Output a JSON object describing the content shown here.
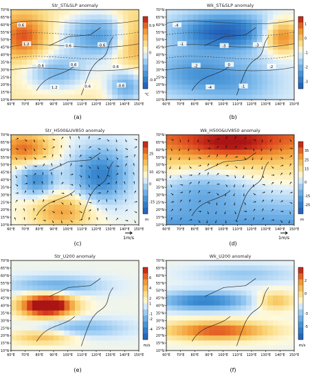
{
  "figure": {
    "captions": [
      "(a)",
      "(b)",
      "(c)",
      "(d)",
      "(e)",
      "(f)"
    ]
  },
  "chart_data": [
    {
      "type": "heatmap",
      "title": "Str_ST&SLP  anomaly",
      "x_ticks": [
        "60°E",
        "70°E",
        "80°E",
        "90°E",
        "100°E",
        "110°E",
        "120°E",
        "130°E",
        "140°E",
        "150°E"
      ],
      "y_ticks": [
        "10°N",
        "15°N",
        "20°N",
        "25°N",
        "30°N",
        "35°N",
        "40°N",
        "45°N",
        "50°N",
        "55°N",
        "60°N",
        "65°N",
        "70°N"
      ],
      "colorbar": {
        "ticks": [
          "-0.9",
          "0",
          "0.9"
        ],
        "unit": "°C",
        "min": -1.2,
        "max": 1.2
      },
      "contour_labels": [
        "0.6",
        "0.6",
        "0.6",
        "1.2",
        "-0.6",
        "-0.6",
        "0.6",
        "1.2",
        "0.6",
        "-0.6"
      ]
    },
    {
      "type": "heatmap",
      "title": "Wk_ST&SLP  anomaly",
      "x_ticks": [
        "60°E",
        "70°E",
        "80°E",
        "90°E",
        "100°E",
        "110°E",
        "120°E",
        "130°E",
        "140°E",
        "150°E"
      ],
      "y_ticks": [
        "10°N",
        "15°N",
        "20°N",
        "25°N",
        "30°N",
        "35°N",
        "40°N",
        "45°N",
        "50°N",
        "55°N",
        "60°N",
        "65°N",
        "70°N"
      ],
      "colorbar": {
        "ticks": [
          "1",
          "0",
          "-1",
          "-2",
          "-3"
        ],
        "unit": "",
        "min": -3.5,
        "max": 1.5
      },
      "contour_labels": [
        "-4",
        "-3",
        "-2",
        "-4",
        "-3",
        "-2",
        "-1",
        "-1",
        "0"
      ]
    },
    {
      "type": "heatmap",
      "title": "Str_H500&UV850  anomaly",
      "x_ticks": [
        "60°E",
        "70°E",
        "80°E",
        "90°E",
        "100°E",
        "110°E",
        "120°E",
        "130°E",
        "140°E",
        "150°E"
      ],
      "y_ticks": [
        "10°N",
        "15°N",
        "20°N",
        "25°N",
        "30°N",
        "35°N",
        "40°N",
        "45°N",
        "50°N",
        "55°N",
        "60°N",
        "65°N",
        "70°N"
      ],
      "colorbar": {
        "ticks": [
          "25",
          "10",
          "0",
          "-15"
        ],
        "unit": "m",
        "min": -25,
        "max": 35
      },
      "vector_scale": "1m/s"
    },
    {
      "type": "heatmap",
      "title": "Wk_H500&UV850  anomaly",
      "x_ticks": [
        "60°E",
        "70°E",
        "80°E",
        "90°E",
        "100°E",
        "110°E",
        "120°E",
        "130°E",
        "140°E",
        "150°E"
      ],
      "y_ticks": [
        "10°N",
        "15°N",
        "20°N",
        "25°N",
        "30°N",
        "35°N",
        "40°N",
        "45°N",
        "50°N",
        "55°N",
        "60°N",
        "65°N",
        "70°N"
      ],
      "colorbar": {
        "ticks": [
          "35",
          "25",
          "15",
          "0",
          "-15",
          "-25"
        ],
        "unit": "m",
        "min": -35,
        "max": 45
      },
      "vector_scale": "1m/s"
    },
    {
      "type": "heatmap",
      "title": "Str_U200  anomaly",
      "x_ticks": [
        "60°E",
        "70°E",
        "80°E",
        "90°E",
        "100°E",
        "110°E",
        "120°E",
        "130°E",
        "140°E",
        "150°E"
      ],
      "y_ticks": [
        "10°N",
        "15°N",
        "20°N",
        "25°N",
        "30°N",
        "35°N",
        "40°N",
        "45°N",
        "50°N",
        "55°N",
        "60°N",
        "65°N",
        "70°N"
      ],
      "colorbar": {
        "ticks": [
          "6",
          "4",
          "2",
          "1",
          "-1",
          "-2",
          "-4"
        ],
        "unit": "m/s",
        "min": -6,
        "max": 8
      }
    },
    {
      "type": "heatmap",
      "title": "Wk_U200  anomaly",
      "x_ticks": [
        "60°E",
        "70°E",
        "80°E",
        "90°E",
        "100°E",
        "110°E",
        "120°E",
        "130°E",
        "140°E",
        "150°E"
      ],
      "y_ticks": [
        "10°N",
        "15°N",
        "20°N",
        "25°N",
        "30°N",
        "35°N",
        "40°N",
        "45°N",
        "50°N",
        "55°N",
        "60°N",
        "65°N",
        "70°N"
      ],
      "colorbar": {
        "ticks": [
          "2",
          "0",
          "-3",
          "-5"
        ],
        "unit": "m/s",
        "min": -7,
        "max": 4
      }
    }
  ]
}
